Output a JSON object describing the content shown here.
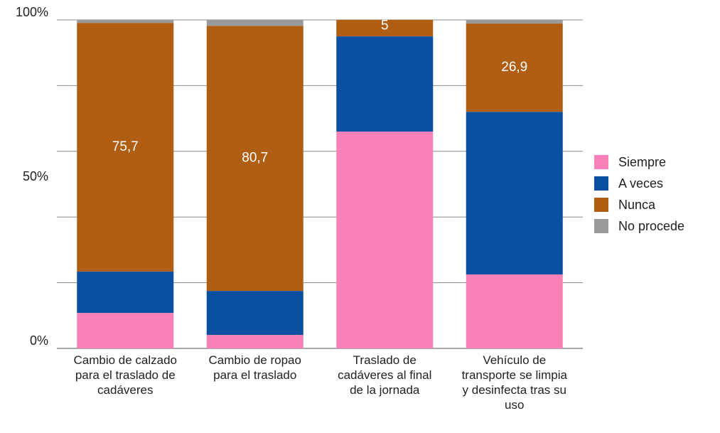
{
  "chart_data": {
    "type": "stacked_bar",
    "categories": [
      "Cambio de calzado para el traslado de cadáveres",
      "Cambio de ropao para el traslado",
      "Traslado de cadáveres al final de la jornada",
      "Vehículo de transporte se limpia y desinfecta tras su uso"
    ],
    "series": [
      {
        "name": "Siempre",
        "color": "#f882b8",
        "values": [
          10.8,
          4.1,
          66.0,
          22.5
        ]
      },
      {
        "name": "A veces",
        "color": "#0a4fa0",
        "values": [
          12.6,
          13.4,
          29.0,
          49.5
        ]
      },
      {
        "name": "Nunca",
        "color": "#b05e14",
        "values": [
          75.7,
          80.7,
          5,
          26.9
        ],
        "value_labels": [
          "75,7",
          "80,7",
          "5",
          "26,9"
        ]
      },
      {
        "name": "No procede",
        "color": "#9a9a9a",
        "values": [
          0.9,
          1.8,
          0,
          1.1
        ]
      }
    ],
    "ylim": [
      0,
      100
    ],
    "yticks": [
      {
        "value": 0,
        "label": "0%"
      },
      {
        "value": 50,
        "label": "50%"
      },
      {
        "value": 100,
        "label": "100%"
      }
    ],
    "gridlines": [
      0,
      20,
      40,
      60,
      80,
      100
    ],
    "grid": true,
    "legend": "right"
  }
}
